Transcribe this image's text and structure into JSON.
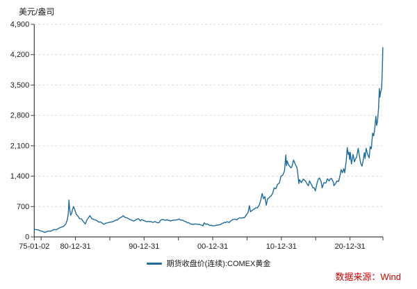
{
  "chart_data": {
    "type": "line",
    "title": "",
    "unit": "美元/盎司",
    "legend": [
      "期货收盘价(连续):COMEX黄金"
    ],
    "source_note": "数据来源：Wind",
    "grid": "horizontal-dashed",
    "legend_position": "bottom-center",
    "colors": {
      "line": "#1e6b9f",
      "grid": "#d9d9d9",
      "axis": "#3d3d3d",
      "text": "#1a1a1a",
      "source": "#cc0000"
    },
    "y_axis": {
      "range": [
        0,
        4900
      ],
      "ticks": [
        {
          "value": 0,
          "label": "0"
        },
        {
          "value": 700,
          "label": "700"
        },
        {
          "value": 1400,
          "label": "1,400"
        },
        {
          "value": 2100,
          "label": "2,100"
        },
        {
          "value": 2800,
          "label": "2,800"
        },
        {
          "value": 3500,
          "label": "3,500"
        },
        {
          "value": 4200,
          "label": "4,200"
        },
        {
          "value": 4900,
          "label": "4,900"
        }
      ]
    },
    "x_axis": {
      "range_years": [
        1975.0,
        2025.8
      ],
      "minor_tick_years": [
        1975.0,
        1976.0,
        1981.0,
        1986.0,
        1991.0,
        1996.0,
        2001.0,
        2006.0,
        2011.0,
        2016.0,
        2021.0,
        2025.8
      ],
      "tick_labels": [
        {
          "label": "75-01-02",
          "year": 1975.0
        },
        {
          "label": "80-12-31",
          "year": 1981.0
        },
        {
          "label": "90-12-31",
          "year": 1991.0
        },
        {
          "label": "00-12-31",
          "year": 2001.0
        },
        {
          "label": "10-12-31",
          "year": 2011.0
        },
        {
          "label": "20-12-31",
          "year": 2021.0
        }
      ]
    },
    "series": [
      {
        "name": "期货收盘价(连续):COMEX黄金",
        "color": "#1e6b9f",
        "points": [
          [
            1975.0,
            176
          ],
          [
            1975.3,
            166
          ],
          [
            1975.6,
            160
          ],
          [
            1975.9,
            140
          ],
          [
            1976.2,
            130
          ],
          [
            1976.6,
            104
          ],
          [
            1976.9,
            130
          ],
          [
            1977.2,
            135
          ],
          [
            1977.6,
            146
          ],
          [
            1978.0,
            170
          ],
          [
            1978.4,
            182
          ],
          [
            1978.7,
            210
          ],
          [
            1979.0,
            228
          ],
          [
            1979.3,
            245
          ],
          [
            1979.6,
            300
          ],
          [
            1979.8,
            390
          ],
          [
            1979.95,
            520
          ],
          [
            1980.05,
            850
          ],
          [
            1980.15,
            640
          ],
          [
            1980.3,
            500
          ],
          [
            1980.45,
            540
          ],
          [
            1980.55,
            620
          ],
          [
            1980.72,
            700
          ],
          [
            1980.9,
            625
          ],
          [
            1981.1,
            530
          ],
          [
            1981.4,
            470
          ],
          [
            1981.6,
            420
          ],
          [
            1981.9,
            415
          ],
          [
            1982.2,
            340
          ],
          [
            1982.45,
            300
          ],
          [
            1982.7,
            400
          ],
          [
            1982.9,
            440
          ],
          [
            1983.1,
            490
          ],
          [
            1983.4,
            420
          ],
          [
            1983.7,
            400
          ],
          [
            1984.0,
            385
          ],
          [
            1984.4,
            340
          ],
          [
            1984.8,
            330
          ],
          [
            1985.1,
            290
          ],
          [
            1985.4,
            315
          ],
          [
            1985.7,
            325
          ],
          [
            1986.0,
            340
          ],
          [
            1986.3,
            345
          ],
          [
            1986.6,
            360
          ],
          [
            1986.9,
            390
          ],
          [
            1987.3,
            420
          ],
          [
            1987.6,
            450
          ],
          [
            1987.95,
            490
          ],
          [
            1988.2,
            450
          ],
          [
            1988.5,
            440
          ],
          [
            1988.8,
            415
          ],
          [
            1989.2,
            385
          ],
          [
            1989.5,
            365
          ],
          [
            1989.9,
            405
          ],
          [
            1990.2,
            420
          ],
          [
            1990.45,
            370
          ],
          [
            1990.65,
            400
          ],
          [
            1990.9,
            380
          ],
          [
            1991.2,
            365
          ],
          [
            1991.6,
            360
          ],
          [
            1992.0,
            355
          ],
          [
            1992.4,
            340
          ],
          [
            1992.8,
            335
          ],
          [
            1993.2,
            330
          ],
          [
            1993.6,
            400
          ],
          [
            1994.0,
            385
          ],
          [
            1994.5,
            380
          ],
          [
            1995.0,
            378
          ],
          [
            1995.5,
            385
          ],
          [
            1996.1,
            415
          ],
          [
            1996.5,
            390
          ],
          [
            1997.0,
            355
          ],
          [
            1997.5,
            325
          ],
          [
            1998.0,
            295
          ],
          [
            1998.4,
            300
          ],
          [
            1998.8,
            290
          ],
          [
            1999.2,
            280
          ],
          [
            1999.6,
            255
          ],
          [
            1999.75,
            325
          ],
          [
            2000.0,
            290
          ],
          [
            2000.4,
            280
          ],
          [
            2000.8,
            270
          ],
          [
            2001.3,
            258
          ],
          [
            2001.7,
            272
          ],
          [
            2002.0,
            280
          ],
          [
            2002.5,
            315
          ],
          [
            2002.9,
            330
          ],
          [
            2003.1,
            350
          ],
          [
            2003.4,
            330
          ],
          [
            2003.9,
            400
          ],
          [
            2004.2,
            410
          ],
          [
            2004.5,
            390
          ],
          [
            2004.9,
            440
          ],
          [
            2005.2,
            430
          ],
          [
            2005.6,
            440
          ],
          [
            2005.9,
            510
          ],
          [
            2006.15,
            560
          ],
          [
            2006.35,
            720
          ],
          [
            2006.5,
            580
          ],
          [
            2006.8,
            620
          ],
          [
            2007.1,
            650
          ],
          [
            2007.5,
            665
          ],
          [
            2007.8,
            740
          ],
          [
            2008.0,
            850
          ],
          [
            2008.2,
            1000
          ],
          [
            2008.4,
            880
          ],
          [
            2008.6,
            930
          ],
          [
            2008.8,
            730
          ],
          [
            2009.0,
            880
          ],
          [
            2009.2,
            900
          ],
          [
            2009.4,
            930
          ],
          [
            2009.7,
            990
          ],
          [
            2009.95,
            1130
          ],
          [
            2010.2,
            1110
          ],
          [
            2010.45,
            1210
          ],
          [
            2010.7,
            1240
          ],
          [
            2010.95,
            1400
          ],
          [
            2011.2,
            1420
          ],
          [
            2011.45,
            1520
          ],
          [
            2011.65,
            1890
          ],
          [
            2011.75,
            1640
          ],
          [
            2011.85,
            1750
          ],
          [
            2012.0,
            1680
          ],
          [
            2012.1,
            1650
          ],
          [
            2012.4,
            1590
          ],
          [
            2012.55,
            1620
          ],
          [
            2012.78,
            1775
          ],
          [
            2013.0,
            1680
          ],
          [
            2013.25,
            1600
          ],
          [
            2013.32,
            1560
          ],
          [
            2013.45,
            1380
          ],
          [
            2013.55,
            1230
          ],
          [
            2013.65,
            1320
          ],
          [
            2013.9,
            1250
          ],
          [
            2014.2,
            1330
          ],
          [
            2014.5,
            1290
          ],
          [
            2014.75,
            1220
          ],
          [
            2014.95,
            1180
          ],
          [
            2015.1,
            1290
          ],
          [
            2015.4,
            1200
          ],
          [
            2015.6,
            1130
          ],
          [
            2015.95,
            1060
          ],
          [
            2016.2,
            1240
          ],
          [
            2016.55,
            1360
          ],
          [
            2016.8,
            1270
          ],
          [
            2016.95,
            1130
          ],
          [
            2017.2,
            1250
          ],
          [
            2017.5,
            1240
          ],
          [
            2017.7,
            1340
          ],
          [
            2017.95,
            1290
          ],
          [
            2018.1,
            1330
          ],
          [
            2018.3,
            1350
          ],
          [
            2018.6,
            1250
          ],
          [
            2018.65,
            1180
          ],
          [
            2018.9,
            1230
          ],
          [
            2019.1,
            1290
          ],
          [
            2019.35,
            1280
          ],
          [
            2019.55,
            1420
          ],
          [
            2019.7,
            1550
          ],
          [
            2019.9,
            1480
          ],
          [
            2020.1,
            1570
          ],
          [
            2020.22,
            1480
          ],
          [
            2020.45,
            1750
          ],
          [
            2020.6,
            2060
          ],
          [
            2020.75,
            1900
          ],
          [
            2020.85,
            1950
          ],
          [
            2020.95,
            1780
          ],
          [
            2021.05,
            1950
          ],
          [
            2021.2,
            1680
          ],
          [
            2021.45,
            1900
          ],
          [
            2021.65,
            1730
          ],
          [
            2021.8,
            1800
          ],
          [
            2021.95,
            1830
          ],
          [
            2022.2,
            2040
          ],
          [
            2022.4,
            1840
          ],
          [
            2022.55,
            1700
          ],
          [
            2022.75,
            1630
          ],
          [
            2022.9,
            1750
          ],
          [
            2023.1,
            1940
          ],
          [
            2023.2,
            1810
          ],
          [
            2023.35,
            2040
          ],
          [
            2023.55,
            1910
          ],
          [
            2023.78,
            1820
          ],
          [
            2023.95,
            2080
          ],
          [
            2024.1,
            2030
          ],
          [
            2024.3,
            2390
          ],
          [
            2024.45,
            2330
          ],
          [
            2024.6,
            2480
          ],
          [
            2024.78,
            2780
          ],
          [
            2024.88,
            2570
          ],
          [
            2025.0,
            2650
          ],
          [
            2025.15,
            2950
          ],
          [
            2025.28,
            3420
          ],
          [
            2025.35,
            3220
          ],
          [
            2025.45,
            3330
          ],
          [
            2025.55,
            3380
          ],
          [
            2025.62,
            3450
          ],
          [
            2025.7,
            3820
          ],
          [
            2025.75,
            4100
          ],
          [
            2025.78,
            4360
          ]
        ]
      }
    ]
  }
}
